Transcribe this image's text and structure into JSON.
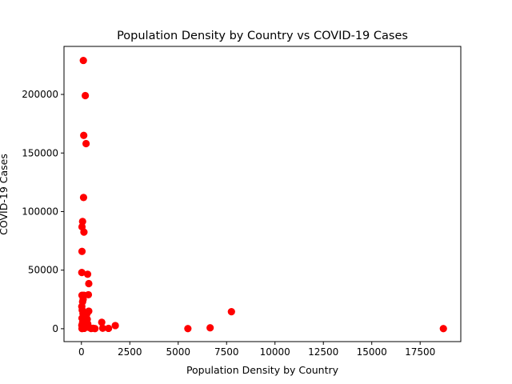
{
  "chart_data": {
    "type": "scatter",
    "title": "Population Density by Country vs COVID-19 Cases",
    "xlabel": "Population Density by Country",
    "ylabel": "COVID-19 Cases",
    "xlim": [
      -900,
      19600
    ],
    "ylim": [
      -11000,
      241000
    ],
    "xticks": [
      0,
      2500,
      5000,
      7500,
      10000,
      12500,
      15000,
      17500
    ],
    "yticks": [
      0,
      50000,
      100000,
      150000,
      200000
    ],
    "grid": false,
    "marker_color": "#ff0000",
    "points": [
      [
        100,
        229000
      ],
      [
        200,
        199000
      ],
      [
        120,
        165000
      ],
      [
        240,
        158000
      ],
      [
        110,
        112000
      ],
      [
        60,
        91500
      ],
      [
        30,
        87000
      ],
      [
        130,
        82500
      ],
      [
        30,
        66000
      ],
      [
        320,
        46500
      ],
      [
        20,
        48000
      ],
      [
        380,
        38500
      ],
      [
        360,
        29000
      ],
      [
        30,
        28500
      ],
      [
        130,
        28500
      ],
      [
        90,
        25000
      ],
      [
        60,
        23000
      ],
      [
        20,
        19000
      ],
      [
        40,
        16000
      ],
      [
        380,
        15000
      ],
      [
        80,
        13000
      ],
      [
        290,
        13000
      ],
      [
        250,
        11000
      ],
      [
        30,
        9000
      ],
      [
        180,
        9000
      ],
      [
        300,
        8000
      ],
      [
        110,
        7000
      ],
      [
        60,
        5500
      ],
      [
        200,
        4800
      ],
      [
        330,
        4000
      ],
      [
        20,
        3000
      ],
      [
        150,
        2500
      ],
      [
        90,
        2000
      ],
      [
        250,
        1500
      ],
      [
        400,
        1000
      ],
      [
        70,
        500
      ],
      [
        140,
        300
      ],
      [
        30,
        100
      ],
      [
        500,
        200
      ],
      [
        600,
        400
      ],
      [
        700,
        100
      ],
      [
        1050,
        5500
      ],
      [
        1100,
        400
      ],
      [
        1400,
        300
      ],
      [
        1750,
        2700
      ],
      [
        5500,
        100
      ],
      [
        6650,
        800
      ],
      [
        7750,
        14500
      ],
      [
        18700,
        100
      ]
    ]
  }
}
